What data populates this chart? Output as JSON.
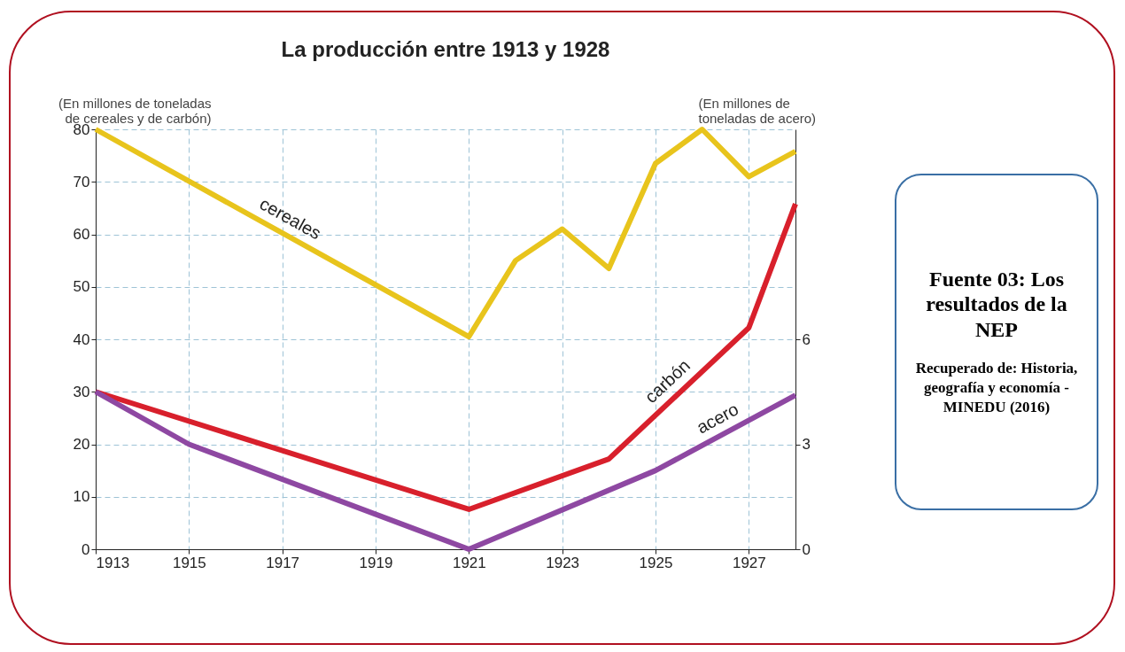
{
  "chart_data": {
    "type": "line",
    "title": "La producción entre 1913 y 1928",
    "ylabel": "(En millones de toneladas de cereales y de carbón)",
    "y2label": "(En millones de toneladas de acero)",
    "xlim": [
      1913,
      1928
    ],
    "xticks": [
      1913,
      1915,
      1917,
      1919,
      1921,
      1923,
      1925,
      1927
    ],
    "ylim": [
      0,
      80
    ],
    "yticks": [
      0,
      10,
      20,
      30,
      40,
      50,
      60,
      70,
      80
    ],
    "y2lim": [
      0,
      12
    ],
    "y2ticks": [
      0,
      3,
      6
    ],
    "grid": true,
    "line_style": "solid",
    "series": [
      {
        "name": "cereales",
        "color": "#e8c41c",
        "x": [
          1913,
          1921,
          1922,
          1923,
          1924,
          1925,
          1926,
          1927,
          1928
        ],
        "values": [
          80,
          40.5,
          55,
          61,
          53.5,
          73.5,
          80,
          71,
          75.8
        ]
      },
      {
        "name": "carbón",
        "color": "#d8202c",
        "x": [
          1913,
          1921,
          1924,
          1927,
          1928
        ],
        "values": [
          30,
          7.6,
          17.2,
          42.2,
          65.8
        ]
      },
      {
        "name": "acero",
        "color": "#8e48a2",
        "axis": "y2",
        "x": [
          1913,
          1915,
          1921,
          1925,
          1928
        ],
        "values": [
          4.5,
          3,
          0,
          2.25,
          4.4
        ]
      }
    ],
    "annotations": [
      "Fuente 03: Los resultados de la NEP",
      "Recuperado de: Historia, geografía y economía - MINEDU (2016)"
    ]
  }
}
